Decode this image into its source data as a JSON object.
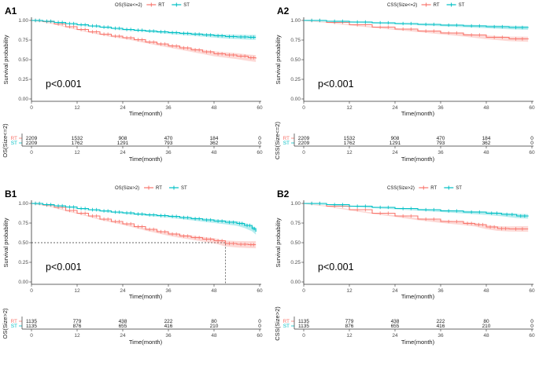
{
  "colors": {
    "RT": "#F8766D",
    "ST": "#00BFC4",
    "RT_band": "#F8766D",
    "ST_band": "#00BFC4"
  },
  "chart_data": [
    {
      "id": "A1",
      "type": "line",
      "panel_label": "A1",
      "legend_title": "OS(Size<=2)",
      "legend_items": [
        "RT",
        "ST"
      ],
      "xlabel": "Time(month)",
      "ylabel": "Survival probability",
      "xlim": [
        0,
        60
      ],
      "ylim": [
        0,
        1
      ],
      "yticks": [
        "0.00",
        "0.25",
        "0.50",
        "0.75",
        "1.00"
      ],
      "xticks": [
        "0",
        "12",
        "24",
        "36",
        "48",
        "60"
      ],
      "pvalue": "p<0.001",
      "series": [
        {
          "name": "RT",
          "x": [
            0,
            3,
            6,
            9,
            12,
            15,
            18,
            21,
            24,
            27,
            30,
            33,
            36,
            39,
            42,
            45,
            48,
            51,
            54,
            57,
            59
          ],
          "values": [
            1.0,
            0.985,
            0.955,
            0.92,
            0.885,
            0.855,
            0.825,
            0.8,
            0.78,
            0.755,
            0.725,
            0.7,
            0.675,
            0.65,
            0.625,
            0.6,
            0.575,
            0.56,
            0.545,
            0.525,
            0.515
          ]
        },
        {
          "name": "ST",
          "x": [
            0,
            3,
            6,
            9,
            12,
            15,
            18,
            21,
            24,
            27,
            30,
            33,
            36,
            39,
            42,
            45,
            48,
            51,
            54,
            57,
            59
          ],
          "values": [
            1.0,
            0.99,
            0.975,
            0.96,
            0.945,
            0.93,
            0.915,
            0.9,
            0.885,
            0.875,
            0.865,
            0.855,
            0.845,
            0.835,
            0.825,
            0.815,
            0.805,
            0.795,
            0.79,
            0.785,
            0.785
          ]
        }
      ],
      "risk_table": {
        "ylabel": "OS(Size<=2)",
        "xlabel": "Time(month)",
        "times": [
          "0",
          "12",
          "24",
          "36",
          "48",
          "60"
        ],
        "rows": [
          {
            "strata": "RT",
            "counts": [
              "2209",
              "1532",
              "908",
              "470",
              "184",
              "0"
            ]
          },
          {
            "strata": "ST",
            "counts": [
              "2209",
              "1762",
              "1291",
              "793",
              "362",
              "0"
            ]
          }
        ]
      }
    },
    {
      "id": "A2",
      "type": "line",
      "panel_label": "A2",
      "legend_title": "CSS(Size<=2)",
      "legend_items": [
        "RT",
        "ST"
      ],
      "xlabel": "Time(month)",
      "ylabel": "Survival probability",
      "xlim": [
        0,
        60
      ],
      "ylim": [
        0,
        1
      ],
      "yticks": [
        "0.00",
        "0.25",
        "0.50",
        "0.75",
        "1.00"
      ],
      "xticks": [
        "0",
        "12",
        "24",
        "36",
        "48",
        "60"
      ],
      "pvalue": "p<0.001",
      "series": [
        {
          "name": "RT",
          "x": [
            0,
            6,
            12,
            18,
            24,
            30,
            36,
            42,
            48,
            54,
            59
          ],
          "values": [
            1.0,
            0.975,
            0.945,
            0.915,
            0.89,
            0.865,
            0.84,
            0.815,
            0.785,
            0.765,
            0.76
          ]
        },
        {
          "name": "ST",
          "x": [
            0,
            6,
            12,
            18,
            24,
            30,
            36,
            42,
            48,
            54,
            59
          ],
          "values": [
            1.0,
            0.99,
            0.98,
            0.97,
            0.96,
            0.95,
            0.94,
            0.93,
            0.92,
            0.91,
            0.905
          ]
        }
      ],
      "risk_table": {
        "ylabel": "CSS(Size<=2)",
        "xlabel": "Time(month)",
        "times": [
          "0",
          "12",
          "24",
          "36",
          "48",
          "60"
        ],
        "rows": [
          {
            "strata": "RT",
            "counts": [
              "2209",
              "1532",
              "908",
              "470",
              "184",
              "0"
            ]
          },
          {
            "strata": "ST",
            "counts": [
              "2209",
              "1762",
              "1291",
              "793",
              "362",
              "0"
            ]
          }
        ]
      }
    },
    {
      "id": "B1",
      "type": "line",
      "panel_label": "B1",
      "legend_title": "OS(Size>2)",
      "legend_items": [
        "RT",
        "ST"
      ],
      "xlabel": "Time(month)",
      "ylabel": "Survival probability",
      "xlim": [
        0,
        60
      ],
      "ylim": [
        0,
        1
      ],
      "yticks": [
        "0.00",
        "0.25",
        "0.50",
        "0.75",
        "1.00"
      ],
      "xticks": [
        "0",
        "12",
        "24",
        "36",
        "48",
        "60"
      ],
      "pvalue": "p<0.001",
      "median_line": {
        "y": 0.5,
        "x": 51
      },
      "series": [
        {
          "name": "RT",
          "x": [
            0,
            3,
            6,
            9,
            12,
            15,
            18,
            21,
            24,
            27,
            30,
            33,
            36,
            39,
            42,
            45,
            48,
            51,
            54,
            57,
            59
          ],
          "values": [
            1.0,
            0.98,
            0.95,
            0.91,
            0.875,
            0.84,
            0.8,
            0.77,
            0.74,
            0.705,
            0.67,
            0.64,
            0.61,
            0.585,
            0.565,
            0.545,
            0.525,
            0.49,
            0.48,
            0.475,
            0.475
          ]
        },
        {
          "name": "ST",
          "x": [
            0,
            3,
            6,
            9,
            12,
            15,
            18,
            21,
            24,
            27,
            30,
            33,
            36,
            39,
            42,
            45,
            48,
            51,
            54,
            56,
            58,
            59
          ],
          "values": [
            1.0,
            0.985,
            0.97,
            0.955,
            0.935,
            0.92,
            0.905,
            0.89,
            0.88,
            0.865,
            0.855,
            0.845,
            0.835,
            0.82,
            0.805,
            0.79,
            0.775,
            0.76,
            0.745,
            0.72,
            0.68,
            0.64
          ]
        }
      ],
      "risk_table": {
        "ylabel": "OS(Size>2)",
        "xlabel": "Time(month)",
        "times": [
          "0",
          "12",
          "24",
          "36",
          "48",
          "60"
        ],
        "rows": [
          {
            "strata": "RT",
            "counts": [
              "1135",
              "779",
              "438",
              "222",
              "80",
              "0"
            ]
          },
          {
            "strata": "ST",
            "counts": [
              "1135",
              "876",
              "655",
              "416",
              "210",
              "0"
            ]
          }
        ]
      }
    },
    {
      "id": "B2",
      "type": "line",
      "panel_label": "B2",
      "legend_title": "CSS(Size>2)",
      "legend_items": [
        "RT",
        "ST"
      ],
      "xlabel": "Time(month)",
      "ylabel": "Survival probability",
      "xlim": [
        0,
        60
      ],
      "ylim": [
        0,
        1
      ],
      "yticks": [
        "0.00",
        "0.25",
        "0.50",
        "0.75",
        "1.00"
      ],
      "xticks": [
        "0",
        "12",
        "24",
        "36",
        "48",
        "60"
      ],
      "pvalue": "p<0.001",
      "series": [
        {
          "name": "RT",
          "x": [
            0,
            6,
            12,
            18,
            24,
            30,
            36,
            42,
            45,
            48,
            51,
            54,
            59
          ],
          "values": [
            1.0,
            0.965,
            0.92,
            0.875,
            0.84,
            0.8,
            0.77,
            0.745,
            0.73,
            0.7,
            0.68,
            0.675,
            0.675
          ]
        },
        {
          "name": "ST",
          "x": [
            0,
            6,
            12,
            18,
            24,
            30,
            36,
            42,
            48,
            52,
            56,
            59
          ],
          "values": [
            1.0,
            0.985,
            0.965,
            0.95,
            0.935,
            0.92,
            0.905,
            0.89,
            0.875,
            0.86,
            0.84,
            0.835
          ]
        }
      ],
      "risk_table": {
        "ylabel": "CSS(Size>2)",
        "xlabel": "Time(month)",
        "times": [
          "0",
          "12",
          "24",
          "36",
          "48",
          "60"
        ],
        "rows": [
          {
            "strata": "RT",
            "counts": [
              "1135",
              "779",
              "438",
              "222",
              "80",
              "0"
            ]
          },
          {
            "strata": "ST",
            "counts": [
              "1135",
              "876",
              "655",
              "416",
              "210",
              "0"
            ]
          }
        ]
      }
    }
  ]
}
